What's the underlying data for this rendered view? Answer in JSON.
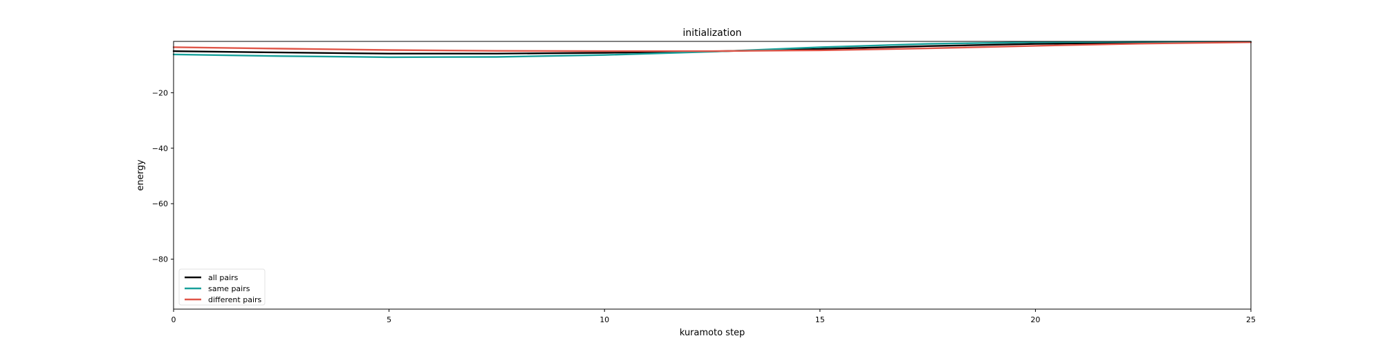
{
  "chart_data": {
    "type": "line",
    "title": "initialization",
    "xlabel": "kuramoto step",
    "ylabel": "energy",
    "xlim": [
      0,
      25
    ],
    "ylim": [
      -98,
      -1.5
    ],
    "xticks": [
      0,
      5,
      10,
      15,
      20,
      25
    ],
    "yticks": [
      -20,
      -40,
      -60,
      -80
    ],
    "grid": false,
    "legend_position": "lower-left",
    "series": [
      {
        "name": "all pairs",
        "color": "#000000",
        "x": [
          0,
          2.5,
          5,
          7.5,
          10,
          12.5,
          15,
          17.5,
          20,
          22.5,
          25
        ],
        "y": [
          -5.0,
          -5.5,
          -5.9,
          -5.9,
          -5.6,
          -5.1,
          -4.2,
          -3.2,
          -2.4,
          -1.9,
          -1.7
        ]
      },
      {
        "name": "same pairs",
        "color": "#17a09a",
        "x": [
          0,
          2.5,
          5,
          7.5,
          10,
          12.5,
          15,
          17.5,
          20,
          22.5,
          25
        ],
        "y": [
          -6.2,
          -6.8,
          -7.2,
          -7.1,
          -6.4,
          -5.2,
          -3.6,
          -2.4,
          -1.8,
          -1.6,
          -1.6
        ]
      },
      {
        "name": "different pairs",
        "color": "#e05548",
        "x": [
          0,
          2.5,
          5,
          7.5,
          10,
          12.5,
          15,
          17.5,
          20,
          22.5,
          25
        ],
        "y": [
          -3.6,
          -4.1,
          -4.6,
          -4.9,
          -5.0,
          -5.0,
          -4.7,
          -4.0,
          -3.1,
          -2.3,
          -1.8
        ]
      }
    ]
  }
}
